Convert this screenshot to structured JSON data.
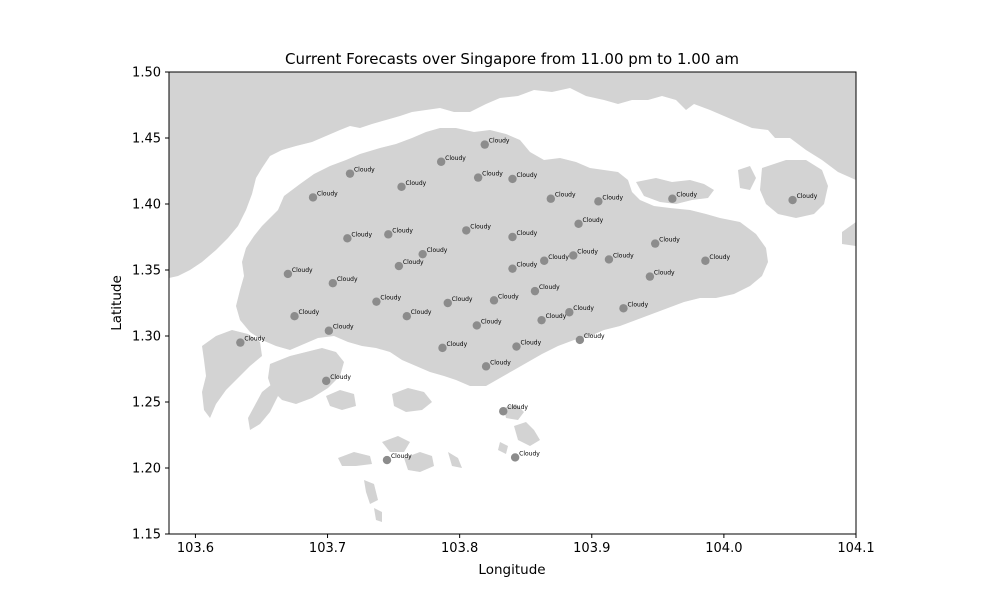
{
  "chart_data": {
    "type": "scatter",
    "title": "Current Forecasts over Singapore from 11.00 pm to 1.00 am",
    "xlabel": "Longitude",
    "ylabel": "Latitude",
    "xlim": [
      103.58,
      104.1
    ],
    "ylim": [
      1.15,
      1.5
    ],
    "xticks": [
      "103.6",
      "103.7",
      "103.8",
      "103.9",
      "104.0",
      "104.1"
    ],
    "xtick_values": [
      103.6,
      103.7,
      103.8,
      103.9,
      104.0,
      104.1
    ],
    "yticks": [
      "1.15",
      "1.20",
      "1.25",
      "1.30",
      "1.35",
      "1.40",
      "1.45",
      "1.50"
    ],
    "ytick_values": [
      1.15,
      1.2,
      1.25,
      1.3,
      1.35,
      1.4,
      1.45,
      1.5
    ],
    "grid": false,
    "point_label_text": "Cloudy",
    "colors": {
      "land": "#d3d3d3",
      "marker": "#8c8c8c",
      "axes": "#000000"
    },
    "points": [
      {
        "x": 103.819,
        "y": 1.445,
        "label": "Cloudy"
      },
      {
        "x": 103.786,
        "y": 1.432,
        "label": "Cloudy"
      },
      {
        "x": 103.717,
        "y": 1.423,
        "label": "Cloudy"
      },
      {
        "x": 103.814,
        "y": 1.42,
        "label": "Cloudy"
      },
      {
        "x": 103.84,
        "y": 1.419,
        "label": "Cloudy"
      },
      {
        "x": 103.756,
        "y": 1.413,
        "label": "Cloudy"
      },
      {
        "x": 103.689,
        "y": 1.405,
        "label": "Cloudy"
      },
      {
        "x": 103.869,
        "y": 1.404,
        "label": "Cloudy"
      },
      {
        "x": 103.905,
        "y": 1.402,
        "label": "Cloudy"
      },
      {
        "x": 103.961,
        "y": 1.404,
        "label": "Cloudy"
      },
      {
        "x": 104.052,
        "y": 1.403,
        "label": "Cloudy"
      },
      {
        "x": 103.89,
        "y": 1.385,
        "label": "Cloudy"
      },
      {
        "x": 103.805,
        "y": 1.38,
        "label": "Cloudy"
      },
      {
        "x": 103.746,
        "y": 1.377,
        "label": "Cloudy"
      },
      {
        "x": 103.715,
        "y": 1.374,
        "label": "Cloudy"
      },
      {
        "x": 103.84,
        "y": 1.375,
        "label": "Cloudy"
      },
      {
        "x": 103.772,
        "y": 1.362,
        "label": "Cloudy"
      },
      {
        "x": 103.948,
        "y": 1.37,
        "label": "Cloudy"
      },
      {
        "x": 103.886,
        "y": 1.361,
        "label": "Cloudy"
      },
      {
        "x": 103.864,
        "y": 1.357,
        "label": "Cloudy"
      },
      {
        "x": 103.913,
        "y": 1.358,
        "label": "Cloudy"
      },
      {
        "x": 103.986,
        "y": 1.357,
        "label": "Cloudy"
      },
      {
        "x": 103.754,
        "y": 1.353,
        "label": "Cloudy"
      },
      {
        "x": 103.84,
        "y": 1.351,
        "label": "Cloudy"
      },
      {
        "x": 103.67,
        "y": 1.347,
        "label": "Cloudy"
      },
      {
        "x": 103.944,
        "y": 1.345,
        "label": "Cloudy"
      },
      {
        "x": 103.704,
        "y": 1.34,
        "label": "Cloudy"
      },
      {
        "x": 103.857,
        "y": 1.334,
        "label": "Cloudy"
      },
      {
        "x": 103.826,
        "y": 1.327,
        "label": "Cloudy"
      },
      {
        "x": 103.737,
        "y": 1.326,
        "label": "Cloudy"
      },
      {
        "x": 103.791,
        "y": 1.325,
        "label": "Cloudy"
      },
      {
        "x": 103.924,
        "y": 1.321,
        "label": "Cloudy"
      },
      {
        "x": 103.883,
        "y": 1.318,
        "label": "Cloudy"
      },
      {
        "x": 103.675,
        "y": 1.315,
        "label": "Cloudy"
      },
      {
        "x": 103.76,
        "y": 1.315,
        "label": "Cloudy"
      },
      {
        "x": 103.862,
        "y": 1.312,
        "label": "Cloudy"
      },
      {
        "x": 103.813,
        "y": 1.308,
        "label": "Cloudy"
      },
      {
        "x": 103.701,
        "y": 1.304,
        "label": "Cloudy"
      },
      {
        "x": 103.891,
        "y": 1.297,
        "label": "Cloudy"
      },
      {
        "x": 103.634,
        "y": 1.295,
        "label": "Cloudy"
      },
      {
        "x": 103.843,
        "y": 1.292,
        "label": "Cloudy"
      },
      {
        "x": 103.787,
        "y": 1.291,
        "label": "Cloudy"
      },
      {
        "x": 103.82,
        "y": 1.277,
        "label": "Cloudy"
      },
      {
        "x": 103.699,
        "y": 1.266,
        "label": "Cloudy"
      },
      {
        "x": 103.833,
        "y": 1.243,
        "label": "Cloudy"
      },
      {
        "x": 103.842,
        "y": 1.208,
        "label": "Cloudy"
      },
      {
        "x": 103.745,
        "y": 1.206,
        "label": "Cloudy"
      }
    ]
  }
}
